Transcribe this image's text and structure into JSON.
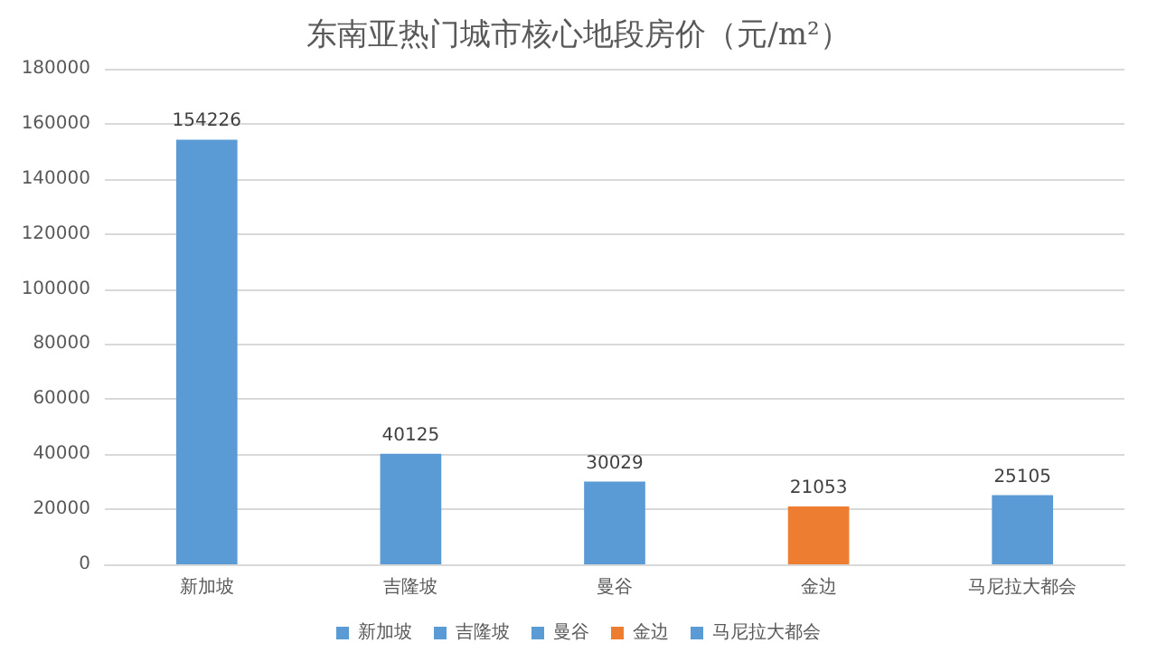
{
  "chart_data": {
    "type": "bar",
    "title": "东南亚热门城市核心地段房价（元/m²）",
    "categories": [
      "新加坡",
      "吉隆坡",
      "曼谷",
      "金边",
      "马尼拉大都会"
    ],
    "series": [
      {
        "name": "新加坡",
        "color": "#5b9bd5",
        "values": [
          154226,
          null,
          null,
          null,
          null
        ]
      },
      {
        "name": "吉隆坡",
        "color": "#5b9bd5",
        "values": [
          null,
          40125,
          null,
          null,
          null
        ]
      },
      {
        "name": "曼谷",
        "color": "#5b9bd5",
        "values": [
          null,
          null,
          30029,
          null,
          null
        ]
      },
      {
        "name": "金边",
        "color": "#ed7d31",
        "values": [
          null,
          null,
          null,
          21053,
          null
        ]
      },
      {
        "name": "马尼拉大都会",
        "color": "#5b9bd5",
        "values": [
          null,
          null,
          null,
          null,
          25105
        ]
      }
    ],
    "ylim": [
      0,
      180000
    ],
    "yticks": [
      0,
      20000,
      40000,
      60000,
      80000,
      100000,
      120000,
      140000,
      160000,
      180000
    ],
    "grid": "y",
    "legend": "bottom",
    "data_labels": true
  }
}
